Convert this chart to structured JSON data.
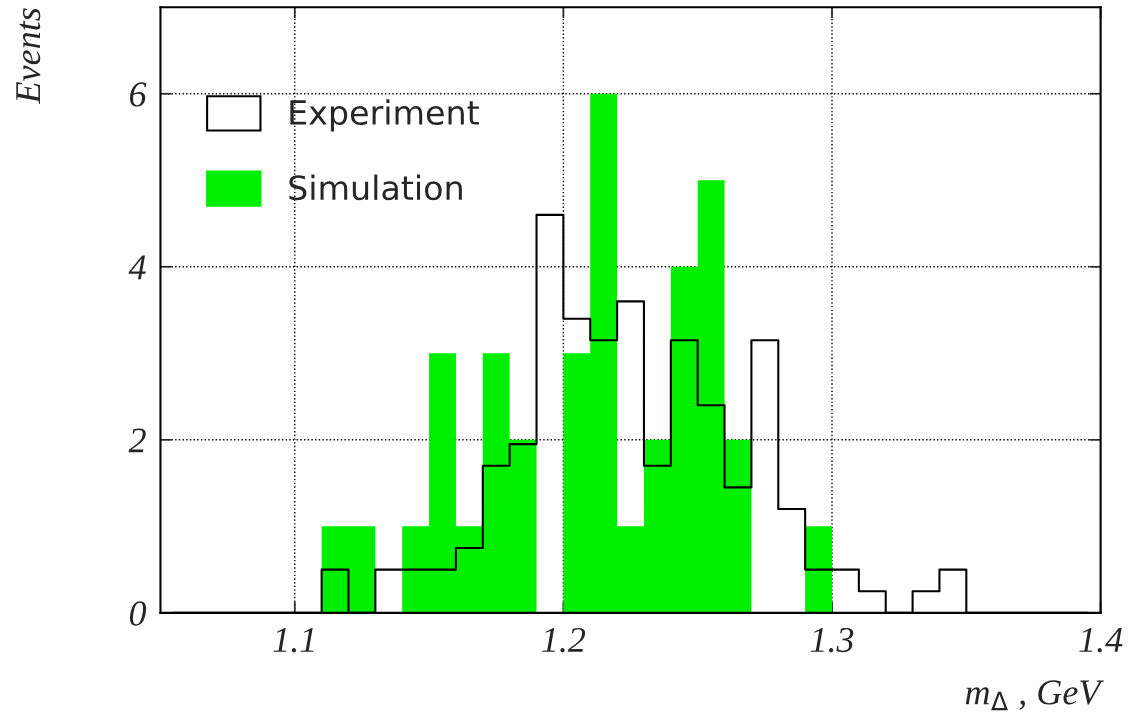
{
  "chart_data": {
    "type": "histogram",
    "xlabel": "m$_{Δ}$ , GeV",
    "ylabel": "Events",
    "bins": [
      1.05,
      1.06,
      1.07,
      1.08,
      1.09,
      1.1,
      1.11,
      1.12,
      1.13,
      1.14,
      1.15,
      1.16,
      1.17,
      1.18,
      1.19,
      1.2,
      1.21,
      1.22,
      1.23,
      1.24,
      1.25,
      1.26,
      1.27,
      1.28,
      1.29,
      1.3,
      1.31,
      1.32,
      1.33,
      1.34,
      1.35,
      1.36,
      1.37,
      1.38,
      1.39,
      1.4
    ],
    "series": [
      {
        "name": "Experiment",
        "type": "step",
        "color": "#000000",
        "x": [
          1.055,
          1.065,
          1.075,
          1.085,
          1.095,
          1.105,
          1.115,
          1.125,
          1.135,
          1.145,
          1.155,
          1.165,
          1.175,
          1.185,
          1.195,
          1.205,
          1.215,
          1.225,
          1.235,
          1.245,
          1.255,
          1.265,
          1.275,
          1.285,
          1.295,
          1.305,
          1.315,
          1.325,
          1.335,
          1.345,
          1.355,
          1.365,
          1.375,
          1.385,
          1.395
        ],
        "values": [
          0,
          0,
          0,
          0,
          0,
          0,
          0.5,
          0,
          0.5,
          0.5,
          0.5,
          0.75,
          1.7,
          1.95,
          4.6,
          3.4,
          3.15,
          3.6,
          1.7,
          3.15,
          2.4,
          1.45,
          3.15,
          1.2,
          0.5,
          0.5,
          0.25,
          0,
          0.25,
          0.5,
          0,
          0,
          0,
          0,
          0
        ]
      },
      {
        "name": "Simulation",
        "color": "#00ee00",
        "values": [
          0,
          0,
          0,
          0,
          0,
          0,
          1,
          1,
          0,
          1,
          3,
          1,
          3,
          2,
          0,
          3,
          6,
          1,
          2,
          4,
          5,
          2,
          0,
          0,
          1,
          0,
          0,
          0,
          0,
          0,
          0,
          0,
          0,
          0,
          0
        ]
      }
    ],
    "xlim": [
      1.05,
      1.4
    ],
    "ylim": [
      0,
      7
    ],
    "xticks": [
      1.1,
      1.2,
      1.3,
      1.4
    ],
    "yticks": [
      0,
      2,
      4,
      6
    ],
    "grid": true,
    "legend": "top left"
  }
}
